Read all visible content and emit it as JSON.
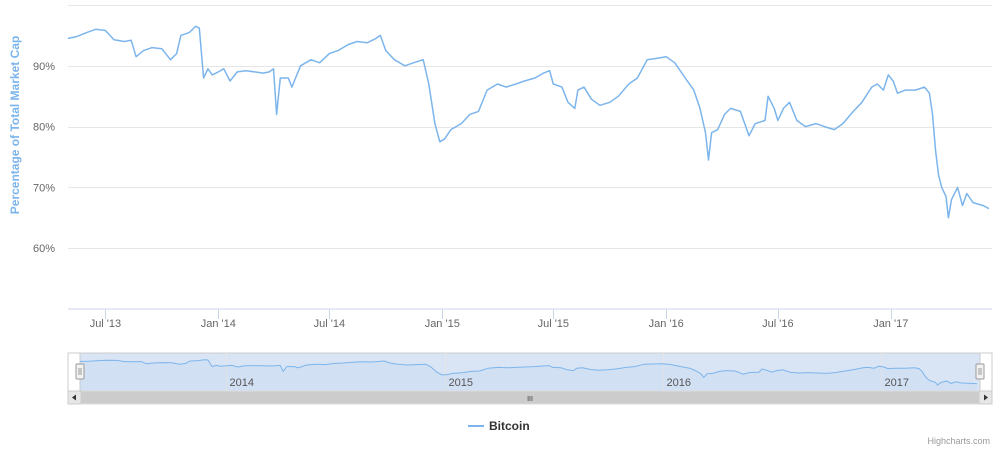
{
  "chart_data": {
    "type": "line",
    "title": "",
    "ylabel": "Percentage of Total Market Cap",
    "ylim": [
      50,
      100
    ],
    "yticks": [
      60,
      70,
      80,
      90
    ],
    "ytick_labels": [
      "60%",
      "70%",
      "80%",
      "90%"
    ],
    "xlim": [
      "2013-05-01",
      "2017-06-15"
    ],
    "xticks": [
      "2013-07-01",
      "2014-01-01",
      "2014-07-01",
      "2015-01-01",
      "2015-07-01",
      "2016-01-01",
      "2016-07-01",
      "2017-01-01"
    ],
    "xtick_labels": [
      "Jul '13",
      "Jan '14",
      "Jul '14",
      "Jan '15",
      "Jul '15",
      "Jan '16",
      "Jul '16",
      "Jan '17"
    ],
    "grid": "horizontal",
    "series": [
      {
        "name": "Bitcoin",
        "color": "#7cb5ec",
        "points": [
          [
            "2013-05-01",
            94.5
          ],
          [
            "2013-05-15",
            94.8
          ],
          [
            "2013-06-01",
            95.5
          ],
          [
            "2013-06-15",
            96.0
          ],
          [
            "2013-07-01",
            95.8
          ],
          [
            "2013-07-15",
            94.3
          ],
          [
            "2013-08-01",
            94.0
          ],
          [
            "2013-08-12",
            94.2
          ],
          [
            "2013-08-20",
            91.5
          ],
          [
            "2013-09-01",
            92.5
          ],
          [
            "2013-09-15",
            93.0
          ],
          [
            "2013-10-01",
            92.8
          ],
          [
            "2013-10-15",
            91.0
          ],
          [
            "2013-10-25",
            92.0
          ],
          [
            "2013-11-01",
            95.0
          ],
          [
            "2013-11-15",
            95.5
          ],
          [
            "2013-11-25",
            96.5
          ],
          [
            "2013-12-01",
            96.2
          ],
          [
            "2013-12-08",
            88.0
          ],
          [
            "2013-12-15",
            89.5
          ],
          [
            "2013-12-22",
            88.5
          ],
          [
            "2014-01-01",
            89.0
          ],
          [
            "2014-01-10",
            89.5
          ],
          [
            "2014-01-20",
            87.5
          ],
          [
            "2014-02-01",
            89.0
          ],
          [
            "2014-02-15",
            89.2
          ],
          [
            "2014-03-01",
            89.0
          ],
          [
            "2014-03-15",
            88.8
          ],
          [
            "2014-03-25",
            89.0
          ],
          [
            "2014-04-01",
            89.5
          ],
          [
            "2014-04-06",
            82.0
          ],
          [
            "2014-04-12",
            88.0
          ],
          [
            "2014-04-25",
            88.0
          ],
          [
            "2014-05-01",
            86.5
          ],
          [
            "2014-05-15",
            90.0
          ],
          [
            "2014-06-01",
            91.0
          ],
          [
            "2014-06-15",
            90.5
          ],
          [
            "2014-07-01",
            92.0
          ],
          [
            "2014-07-15",
            92.5
          ],
          [
            "2014-08-01",
            93.5
          ],
          [
            "2014-08-15",
            94.0
          ],
          [
            "2014-09-01",
            93.8
          ],
          [
            "2014-09-15",
            94.5
          ],
          [
            "2014-09-22",
            95.0
          ],
          [
            "2014-10-01",
            92.5
          ],
          [
            "2014-10-15",
            91.0
          ],
          [
            "2014-11-01",
            90.0
          ],
          [
            "2014-11-15",
            90.5
          ],
          [
            "2014-12-01",
            91.0
          ],
          [
            "2014-12-10",
            87.0
          ],
          [
            "2014-12-20",
            80.5
          ],
          [
            "2014-12-28",
            77.5
          ],
          [
            "2015-01-05",
            78.0
          ],
          [
            "2015-01-15",
            79.5
          ],
          [
            "2015-02-01",
            80.5
          ],
          [
            "2015-02-15",
            82.0
          ],
          [
            "2015-03-01",
            82.5
          ],
          [
            "2015-03-15",
            86.0
          ],
          [
            "2015-04-01",
            87.0
          ],
          [
            "2015-04-15",
            86.5
          ],
          [
            "2015-05-01",
            87.0
          ],
          [
            "2015-05-15",
            87.5
          ],
          [
            "2015-06-01",
            88.0
          ],
          [
            "2015-06-15",
            88.8
          ],
          [
            "2015-06-25",
            89.2
          ],
          [
            "2015-07-01",
            87.0
          ],
          [
            "2015-07-15",
            86.5
          ],
          [
            "2015-07-25",
            84.0
          ],
          [
            "2015-08-05",
            83.0
          ],
          [
            "2015-08-10",
            86.0
          ],
          [
            "2015-08-20",
            86.5
          ],
          [
            "2015-09-01",
            84.5
          ],
          [
            "2015-09-15",
            83.5
          ],
          [
            "2015-10-01",
            84.0
          ],
          [
            "2015-10-15",
            85.0
          ],
          [
            "2015-11-01",
            87.0
          ],
          [
            "2015-11-15",
            88.0
          ],
          [
            "2015-12-01",
            91.0
          ],
          [
            "2015-12-15",
            91.2
          ],
          [
            "2016-01-01",
            91.5
          ],
          [
            "2016-01-15",
            90.5
          ],
          [
            "2016-02-01",
            88.0
          ],
          [
            "2016-02-15",
            86.0
          ],
          [
            "2016-02-25",
            83.0
          ],
          [
            "2016-03-05",
            79.0
          ],
          [
            "2016-03-10",
            74.5
          ],
          [
            "2016-03-15",
            79.0
          ],
          [
            "2016-03-25",
            79.5
          ],
          [
            "2016-04-05",
            82.0
          ],
          [
            "2016-04-15",
            83.0
          ],
          [
            "2016-05-01",
            82.5
          ],
          [
            "2016-05-15",
            78.5
          ],
          [
            "2016-05-25",
            80.5
          ],
          [
            "2016-06-10",
            81.0
          ],
          [
            "2016-06-15",
            85.0
          ],
          [
            "2016-06-25",
            83.0
          ],
          [
            "2016-07-01",
            81.0
          ],
          [
            "2016-07-10",
            83.0
          ],
          [
            "2016-07-20",
            84.0
          ],
          [
            "2016-08-01",
            81.0
          ],
          [
            "2016-08-15",
            80.0
          ],
          [
            "2016-09-01",
            80.5
          ],
          [
            "2016-09-15",
            80.0
          ],
          [
            "2016-10-01",
            79.5
          ],
          [
            "2016-10-15",
            80.5
          ],
          [
            "2016-11-01",
            82.5
          ],
          [
            "2016-11-15",
            84.0
          ],
          [
            "2016-12-01",
            86.5
          ],
          [
            "2016-12-10",
            87.0
          ],
          [
            "2016-12-20",
            86.0
          ],
          [
            "2016-12-28",
            88.5
          ],
          [
            "2017-01-05",
            87.5
          ],
          [
            "2017-01-12",
            85.5
          ],
          [
            "2017-01-25",
            86.0
          ],
          [
            "2017-02-10",
            86.0
          ],
          [
            "2017-02-25",
            86.5
          ],
          [
            "2017-03-05",
            85.5
          ],
          [
            "2017-03-10",
            82.0
          ],
          [
            "2017-03-15",
            76.0
          ],
          [
            "2017-03-20",
            72.0
          ],
          [
            "2017-03-25",
            70.0
          ],
          [
            "2017-04-01",
            68.5
          ],
          [
            "2017-04-05",
            65.0
          ],
          [
            "2017-04-10",
            68.0
          ],
          [
            "2017-04-20",
            70.0
          ],
          [
            "2017-04-28",
            67.0
          ],
          [
            "2017-05-05",
            69.0
          ],
          [
            "2017-05-15",
            67.5
          ],
          [
            "2017-06-01",
            67.0
          ],
          [
            "2017-06-10",
            66.5
          ]
        ]
      }
    ],
    "navigator": {
      "year_labels": [
        "2014",
        "2015",
        "2016",
        "2017"
      ],
      "year_dates": [
        "2014-01-01",
        "2015-01-01",
        "2016-01-01",
        "2017-01-01"
      ],
      "scroll_grip": "III"
    },
    "legend": {
      "position": "bottom-center",
      "items": [
        "Bitcoin"
      ]
    }
  },
  "legend": {
    "label": "Bitcoin"
  },
  "credits": {
    "text": "Highcharts.com"
  }
}
